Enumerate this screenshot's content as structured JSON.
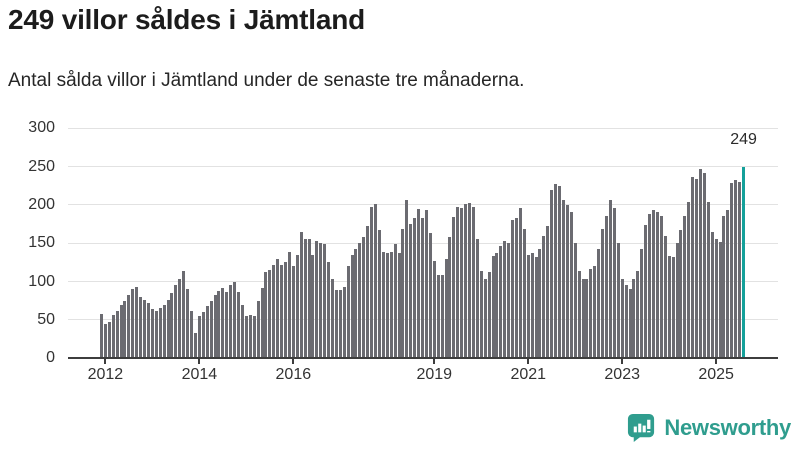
{
  "header": {
    "title": "249 villor såldes i Jämtland",
    "subtitle": "Antal sålda villor i Jämtland under de senaste tre månaderna."
  },
  "chart_data": {
    "type": "bar",
    "title": "249 villor såldes i Jämtland",
    "unit": "sålda villor (rullande tre månader)",
    "frequency": "monthly",
    "period_start": "2011-12",
    "period_end": "2025-08",
    "ylim": [
      0,
      300
    ],
    "y_ticks": [
      0,
      50,
      100,
      150,
      200,
      250,
      300
    ],
    "grid": "horizontal",
    "x_ticks": [
      {
        "label": "2012",
        "index": 1
      },
      {
        "label": "2014",
        "index": 25
      },
      {
        "label": "2016",
        "index": 49
      },
      {
        "label": "2019",
        "index": 85
      },
      {
        "label": "2021",
        "index": 109
      },
      {
        "label": "2023",
        "index": 133
      },
      {
        "label": "2025",
        "index": 157
      }
    ],
    "values": [
      58,
      45,
      48,
      57,
      62,
      70,
      75,
      82,
      90,
      93,
      80,
      76,
      72,
      64,
      62,
      66,
      70,
      76,
      85,
      95,
      103,
      114,
      90,
      62,
      33,
      55,
      60,
      68,
      75,
      83,
      88,
      92,
      87,
      95,
      100,
      87,
      70,
      55,
      57,
      55,
      75,
      92,
      112,
      115,
      122,
      130,
      122,
      126,
      139,
      120,
      135,
      165,
      156,
      156,
      135,
      153,
      151,
      149,
      125,
      104,
      89,
      89,
      93,
      121,
      135,
      143,
      151,
      158,
      173,
      198,
      201,
      167,
      139,
      138,
      139,
      149,
      137,
      169,
      207,
      175,
      183,
      195,
      183,
      193,
      164,
      127,
      109,
      109,
      130,
      158,
      184,
      198,
      196,
      201,
      203,
      198,
      156,
      114,
      104,
      112,
      134,
      138,
      147,
      153,
      151,
      180,
      183,
      196,
      169,
      135,
      138,
      132,
      143,
      159,
      173,
      219,
      228,
      225,
      206,
      200,
      191,
      151,
      114,
      103,
      103,
      117,
      120,
      143,
      169,
      186,
      207,
      196,
      151,
      103,
      95,
      91,
      103,
      114,
      143,
      174,
      188,
      194,
      191,
      186,
      159,
      133,
      132,
      150,
      167,
      185,
      204,
      236,
      234,
      247,
      242,
      204,
      165,
      156,
      152,
      186,
      193,
      229,
      232,
      230,
      249
    ],
    "highlight": {
      "index": 164,
      "value": 249,
      "label": "249"
    }
  },
  "footer": {
    "brand": "Newsworthy"
  },
  "colors": {
    "bar": "#6b6b71",
    "highlight": "#14a09a",
    "grid": "#e2e2e2",
    "axis": "#3d3d3d",
    "title": "#1c1c1c",
    "text": "#333333",
    "brand": "#2f9d8e"
  }
}
